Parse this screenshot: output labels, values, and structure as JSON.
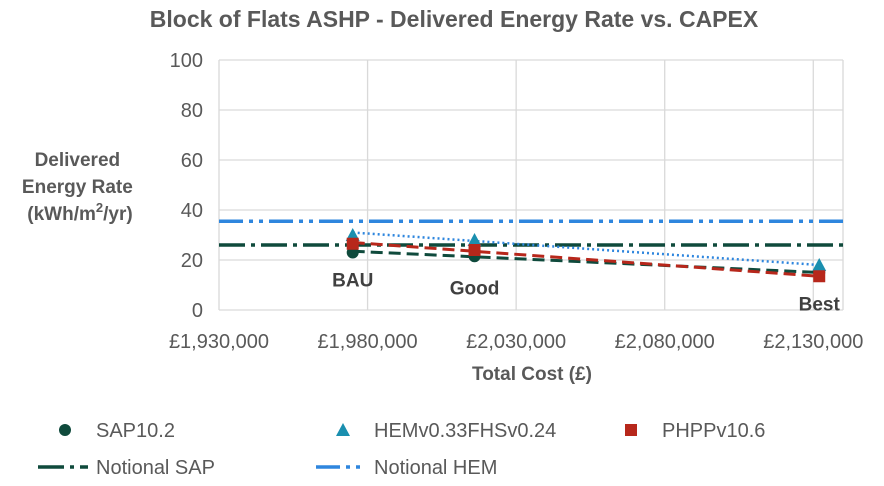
{
  "chart_data": {
    "type": "scatter",
    "title": "Block of Flats ASHP - Delivered Energy Rate vs. CAPEX",
    "xlabel": "Total Cost (£)",
    "ylabel_lines": [
      "Delivered",
      "Energy Rate",
      "(kWh/m",
      "2",
      "/yr)"
    ],
    "xlim": [
      1930000,
      2140000
    ],
    "ylim": [
      0,
      100
    ],
    "xticks": [
      1930000,
      1980000,
      2030000,
      2080000,
      2130000
    ],
    "xtick_labels": [
      "£1,930,000",
      "£1,980,000",
      "£2,030,000",
      "£2,080,000",
      "£2,130,000"
    ],
    "yticks": [
      0,
      20,
      40,
      60,
      80,
      100
    ],
    "ytick_labels": [
      "0",
      "20",
      "40",
      "60",
      "80",
      "100"
    ],
    "grid": true,
    "legend_position": "bottom",
    "series": [
      {
        "name": "SAP10.2",
        "marker": "circle",
        "color": "#0f4a3c",
        "x": [
          1975000,
          2016000,
          2132000
        ],
        "y": [
          23,
          21.5,
          15
        ],
        "trendline": {
          "style": "dashed",
          "color": "#0f4a3c",
          "from": [
            1975000,
            23.5
          ],
          "to": [
            2132000,
            15
          ]
        }
      },
      {
        "name": "HEMv0.33FHSv0.24",
        "marker": "triangle",
        "color": "#1a8faf",
        "x": [
          1975000,
          2016000,
          2132000
        ],
        "y": [
          30,
          28,
          18
        ],
        "trendline": {
          "style": "dotted",
          "color": "#2e86de",
          "from": [
            1975000,
            31
          ],
          "to": [
            2132000,
            18
          ]
        }
      },
      {
        "name": "PHPPv10.6",
        "marker": "square",
        "color": "#b7271b",
        "x": [
          1975000,
          2016000,
          2132000
        ],
        "y": [
          26.5,
          24,
          13.5
        ],
        "trendline": {
          "style": "dashed",
          "color": "#b7271b",
          "from": [
            1975000,
            27
          ],
          "to": [
            2132000,
            13.5
          ]
        }
      },
      {
        "name": "Notional SAP",
        "line": "dash-dot",
        "color": "#0f4a3c",
        "y_constant": 26
      },
      {
        "name": "Notional HEM",
        "line": "dash-dot-dot",
        "color": "#2e86de",
        "y_constant": 35.5
      }
    ],
    "annotations": [
      {
        "text": "BAU",
        "x": 1975000,
        "y": 23
      },
      {
        "text": "Good",
        "x": 2016000,
        "y": 21.5
      },
      {
        "text": "Best",
        "x": 2132000,
        "y": 13.5
      }
    ]
  }
}
